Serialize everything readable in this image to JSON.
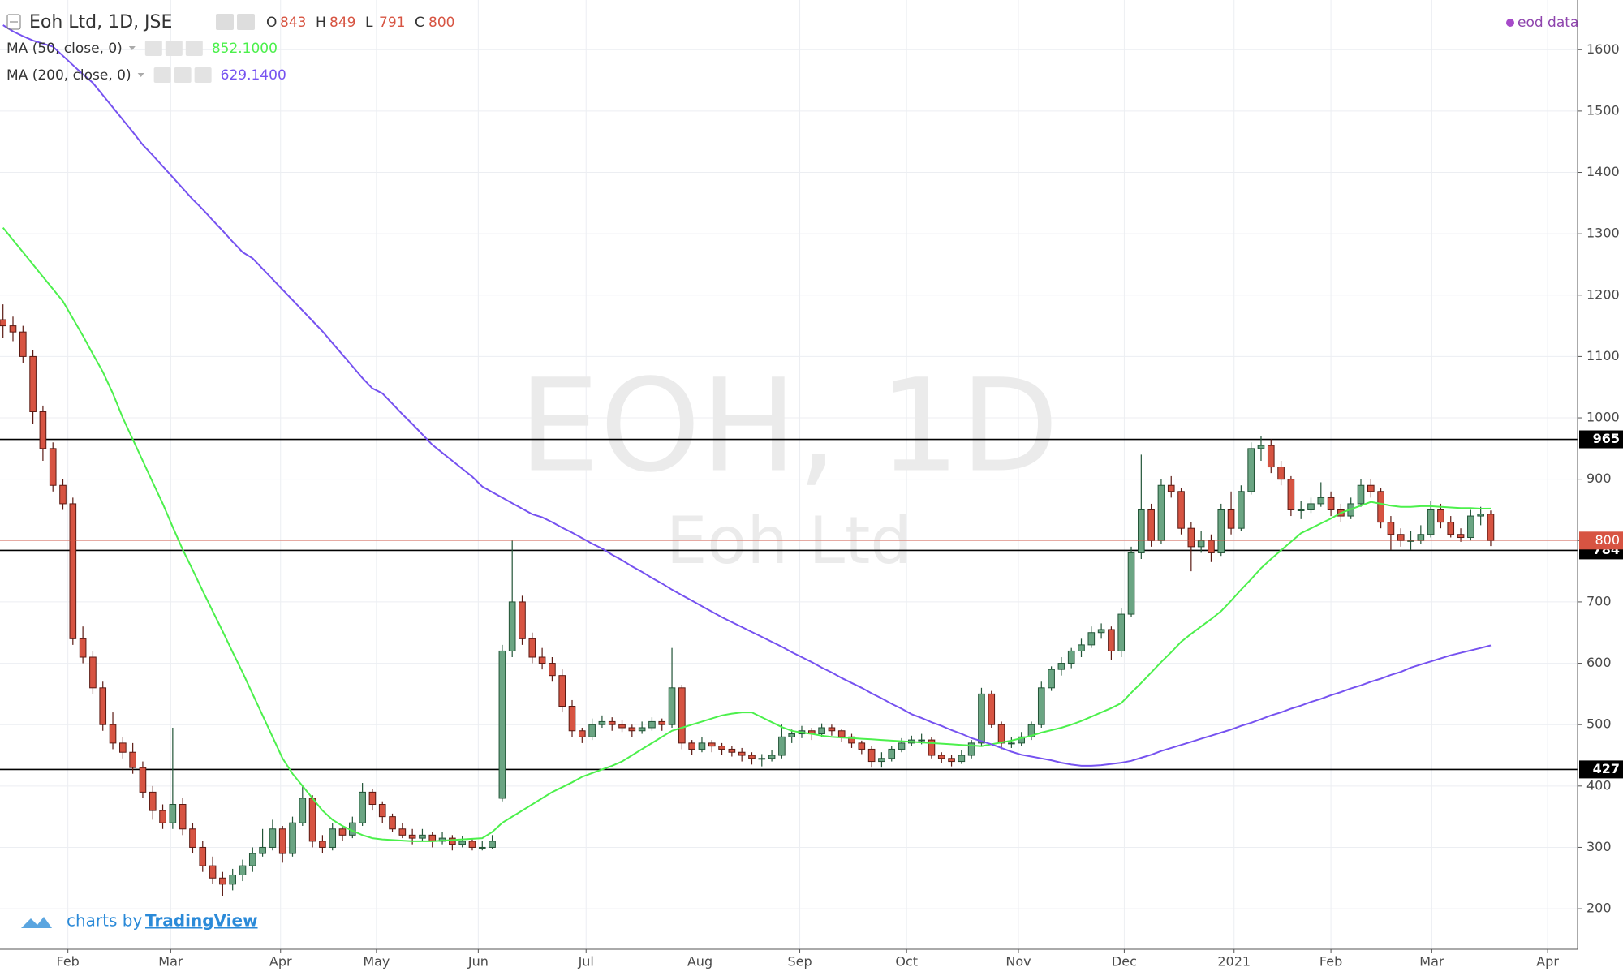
{
  "chart_data": {
    "type": "candlestick",
    "title": "Eoh Ltd, 1D, JSE",
    "watermark": "EOH, 1D",
    "watermark_sub": "Eoh Ltd",
    "source": "eod data",
    "credit": [
      "charts by",
      "TradingView"
    ],
    "ohlc_labels": [
      "O",
      "H",
      "L",
      "C"
    ],
    "up_color": "#6ba583",
    "down_color": "#d75442",
    "up_border": "#225437",
    "down_border": "#5b1a13",
    "candles": [
      [
        1160,
        1185,
        1130,
        1150
      ],
      [
        1150,
        1165,
        1125,
        1140
      ],
      [
        1140,
        1150,
        1090,
        1100
      ],
      [
        1100,
        1110,
        990,
        1010
      ],
      [
        1010,
        1020,
        930,
        950
      ],
      [
        950,
        960,
        880,
        890
      ],
      [
        890,
        900,
        850,
        860
      ],
      [
        860,
        870,
        630,
        640
      ],
      [
        640,
        660,
        600,
        610
      ],
      [
        610,
        620,
        550,
        560
      ],
      [
        560,
        570,
        490,
        500
      ],
      [
        500,
        520,
        460,
        470
      ],
      [
        470,
        480,
        445,
        455
      ],
      [
        455,
        470,
        420,
        430
      ],
      [
        430,
        440,
        380,
        390
      ],
      [
        390,
        400,
        345,
        360
      ],
      [
        360,
        370,
        330,
        340
      ],
      [
        340,
        495,
        330,
        370
      ],
      [
        370,
        380,
        320,
        330
      ],
      [
        330,
        340,
        290,
        300
      ],
      [
        300,
        310,
        260,
        270
      ],
      [
        270,
        285,
        240,
        250
      ],
      [
        250,
        260,
        220,
        240
      ],
      [
        240,
        265,
        230,
        255
      ],
      [
        255,
        280,
        245,
        270
      ],
      [
        270,
        300,
        260,
        290
      ],
      [
        290,
        330,
        285,
        300
      ],
      [
        300,
        345,
        295,
        330
      ],
      [
        330,
        335,
        275,
        290
      ],
      [
        290,
        350,
        285,
        340
      ],
      [
        340,
        400,
        335,
        380
      ],
      [
        380,
        385,
        300,
        310
      ],
      [
        310,
        320,
        290,
        300
      ],
      [
        300,
        340,
        295,
        330
      ],
      [
        330,
        335,
        310,
        320
      ],
      [
        320,
        350,
        315,
        340
      ],
      [
        340,
        405,
        335,
        390
      ],
      [
        390,
        395,
        360,
        370
      ],
      [
        370,
        375,
        340,
        350
      ],
      [
        350,
        355,
        325,
        330
      ],
      [
        330,
        340,
        315,
        320
      ],
      [
        320,
        330,
        305,
        315
      ],
      [
        315,
        330,
        310,
        320
      ],
      [
        320,
        325,
        300,
        310
      ],
      [
        310,
        325,
        305,
        315
      ],
      [
        315,
        320,
        295,
        305
      ],
      [
        305,
        318,
        300,
        310
      ],
      [
        310,
        315,
        295,
        300
      ],
      [
        300,
        310,
        295,
        300
      ],
      [
        300,
        320,
        298,
        310
      ],
      [
        380,
        630,
        375,
        620
      ],
      [
        620,
        800,
        610,
        700
      ],
      [
        700,
        710,
        630,
        640
      ],
      [
        640,
        650,
        600,
        610
      ],
      [
        610,
        625,
        590,
        600
      ],
      [
        600,
        610,
        570,
        580
      ],
      [
        580,
        590,
        520,
        530
      ],
      [
        530,
        540,
        480,
        490
      ],
      [
        490,
        495,
        470,
        480
      ],
      [
        480,
        510,
        475,
        500
      ],
      [
        500,
        515,
        495,
        505
      ],
      [
        505,
        512,
        490,
        500
      ],
      [
        500,
        508,
        488,
        495
      ],
      [
        495,
        500,
        480,
        490
      ],
      [
        490,
        505,
        485,
        495
      ],
      [
        495,
        512,
        490,
        505
      ],
      [
        505,
        510,
        490,
        500
      ],
      [
        500,
        625,
        495,
        560
      ],
      [
        560,
        565,
        460,
        470
      ],
      [
        470,
        475,
        450,
        460
      ],
      [
        460,
        480,
        455,
        470
      ],
      [
        470,
        475,
        455,
        465
      ],
      [
        465,
        470,
        450,
        460
      ],
      [
        460,
        465,
        448,
        455
      ],
      [
        455,
        462,
        440,
        450
      ],
      [
        450,
        455,
        435,
        445
      ],
      [
        445,
        452,
        432,
        445
      ],
      [
        445,
        458,
        440,
        450
      ],
      [
        450,
        500,
        445,
        480
      ],
      [
        480,
        492,
        470,
        485
      ],
      [
        485,
        498,
        478,
        490
      ],
      [
        490,
        495,
        475,
        485
      ],
      [
        485,
        502,
        480,
        495
      ],
      [
        495,
        500,
        482,
        490
      ],
      [
        490,
        493,
        472,
        480
      ],
      [
        480,
        485,
        462,
        470
      ],
      [
        470,
        474,
        452,
        460
      ],
      [
        460,
        465,
        430,
        440
      ],
      [
        440,
        455,
        430,
        445
      ],
      [
        445,
        465,
        440,
        460
      ],
      [
        460,
        478,
        455,
        470
      ],
      [
        470,
        482,
        465,
        475
      ],
      [
        475,
        485,
        468,
        475
      ],
      [
        475,
        480,
        445,
        450
      ],
      [
        450,
        455,
        438,
        445
      ],
      [
        445,
        450,
        432,
        440
      ],
      [
        440,
        458,
        436,
        450
      ],
      [
        450,
        475,
        445,
        470
      ],
      [
        470,
        560,
        465,
        550
      ],
      [
        550,
        555,
        495,
        500
      ],
      [
        500,
        505,
        460,
        470
      ],
      [
        470,
        480,
        462,
        470
      ],
      [
        470,
        488,
        465,
        480
      ],
      [
        480,
        505,
        475,
        500
      ],
      [
        500,
        570,
        495,
        560
      ],
      [
        560,
        595,
        555,
        590
      ],
      [
        590,
        610,
        580,
        600
      ],
      [
        600,
        625,
        592,
        620
      ],
      [
        620,
        640,
        610,
        630
      ],
      [
        630,
        660,
        625,
        650
      ],
      [
        650,
        665,
        640,
        655
      ],
      [
        655,
        660,
        605,
        620
      ],
      [
        620,
        690,
        610,
        680
      ],
      [
        680,
        790,
        675,
        780
      ],
      [
        780,
        940,
        770,
        850
      ],
      [
        850,
        860,
        790,
        800
      ],
      [
        800,
        900,
        795,
        890
      ],
      [
        890,
        905,
        870,
        880
      ],
      [
        880,
        885,
        810,
        820
      ],
      [
        820,
        830,
        750,
        790
      ],
      [
        790,
        815,
        780,
        800
      ],
      [
        800,
        810,
        765,
        780
      ],
      [
        780,
        860,
        775,
        850
      ],
      [
        850,
        880,
        810,
        820
      ],
      [
        820,
        890,
        815,
        880
      ],
      [
        880,
        960,
        875,
        950
      ],
      [
        950,
        970,
        930,
        955
      ],
      [
        955,
        965,
        910,
        920
      ],
      [
        920,
        930,
        890,
        900
      ],
      [
        900,
        905,
        840,
        850
      ],
      [
        850,
        865,
        835,
        850
      ],
      [
        850,
        870,
        845,
        860
      ],
      [
        860,
        895,
        855,
        870
      ],
      [
        870,
        880,
        840,
        850
      ],
      [
        850,
        860,
        830,
        840
      ],
      [
        840,
        870,
        835,
        860
      ],
      [
        860,
        900,
        855,
        890
      ],
      [
        890,
        900,
        870,
        880
      ],
      [
        880,
        885,
        820,
        830
      ],
      [
        830,
        840,
        785,
        810
      ],
      [
        810,
        820,
        790,
        800
      ],
      [
        800,
        815,
        785,
        800
      ],
      [
        800,
        825,
        795,
        810
      ],
      [
        810,
        865,
        805,
        850
      ],
      [
        850,
        860,
        820,
        830
      ],
      [
        830,
        840,
        805,
        810
      ],
      [
        810,
        820,
        798,
        805
      ],
      [
        805,
        850,
        800,
        840
      ],
      [
        840,
        855,
        825,
        843
      ],
      [
        843,
        849,
        791,
        800
      ]
    ],
    "series": [
      {
        "name": "MA (50, close, 0)",
        "color": "#4cf04c",
        "last_value_label": "852.1000",
        "values": [
          1310,
          1290,
          1270,
          1250,
          1230,
          1210,
          1190,
          1162,
          1134,
          1104,
          1075,
          1040,
          1000,
          965,
          930,
          895,
          860,
          822,
          785,
          752,
          718,
          685,
          652,
          618,
          585,
          550,
          515,
          480,
          445,
          420,
          400,
          380,
          360,
          345,
          335,
          327,
          320,
          315,
          313,
          312,
          311,
          310,
          310,
          310,
          311,
          312,
          313,
          314,
          315,
          325,
          340,
          350,
          360,
          370,
          380,
          390,
          398,
          406,
          415,
          421,
          427,
          433,
          440,
          450,
          460,
          470,
          480,
          490,
          495,
          500,
          505,
          510,
          515,
          518,
          520,
          520,
          512,
          504,
          496,
          490,
          487,
          485,
          482,
          480,
          479,
          478,
          477,
          476,
          475,
          474,
          473,
          472,
          471,
          470,
          469,
          468,
          467,
          466,
          465,
          468,
          471,
          474,
          478,
          482,
          487,
          491,
          495,
          500,
          506,
          513,
          520,
          527,
          535,
          552,
          568,
          585,
          602,
          618,
          635,
          648,
          660,
          672,
          685,
          702,
          720,
          737,
          755,
          770,
          784,
          798,
          812,
          820,
          828,
          836,
          845,
          851,
          857,
          863,
          860,
          857,
          855,
          855,
          856,
          856,
          855,
          854,
          853,
          853,
          852,
          852.1
        ]
      },
      {
        "name": "MA (200, close, 0)",
        "color": "#7652f0",
        "last_value_label": "629.1400",
        "values": [
          1640,
          1630,
          1622,
          1615,
          1610,
          1605,
          1590,
          1575,
          1560,
          1546,
          1526,
          1506,
          1486,
          1466,
          1445,
          1428,
          1410,
          1392,
          1374,
          1356,
          1340,
          1322,
          1305,
          1287,
          1270,
          1260,
          1243,
          1226,
          1209,
          1192,
          1175,
          1158,
          1141,
          1122,
          1103,
          1084,
          1065,
          1048,
          1040,
          1023,
          1006,
          990,
          973,
          956,
          943,
          930,
          917,
          904,
          888,
          879,
          870,
          861,
          852,
          843,
          838,
          830,
          821,
          813,
          804,
          795,
          787,
          777,
          768,
          758,
          749,
          739,
          730,
          720,
          711,
          702,
          693,
          684,
          675,
          667,
          659,
          651,
          643,
          635,
          627,
          618,
          610,
          602,
          593,
          585,
          576,
          568,
          560,
          551,
          543,
          534,
          526,
          517,
          511,
          504,
          498,
          491,
          485,
          478,
          473,
          468,
          462,
          456,
          451,
          448,
          445,
          442,
          438,
          435,
          433,
          433,
          434,
          436,
          438,
          441,
          446,
          451,
          457,
          462,
          467,
          472,
          477,
          482,
          487,
          492,
          498,
          503,
          509,
          515,
          520,
          526,
          531,
          537,
          542,
          548,
          553,
          559,
          564,
          570,
          575,
          581,
          586,
          593,
          598,
          603,
          608,
          613,
          617,
          621,
          625,
          629.14
        ]
      }
    ],
    "hlines": [
      965,
      784,
      427
    ],
    "hline_color": "#000000",
    "ylim": [
      134,
      1681
    ],
    "yticks": [
      200,
      300,
      400,
      500,
      600,
      700,
      800,
      900,
      1000,
      1100,
      1200,
      1300,
      1400,
      1500,
      1600
    ],
    "xlim": [
      -0.3,
      157.7
    ],
    "xticks": [
      {
        "value": 6.5,
        "label": "Feb"
      },
      {
        "value": 16.8,
        "label": "Mar"
      },
      {
        "value": 27.8,
        "label": "Apr"
      },
      {
        "value": 37.4,
        "label": "May"
      },
      {
        "value": 47.6,
        "label": "Jun"
      },
      {
        "value": 58.4,
        "label": "Jul"
      },
      {
        "value": 69.8,
        "label": "Aug"
      },
      {
        "value": 79.8,
        "label": "Sep"
      },
      {
        "value": 90.5,
        "label": "Oct"
      },
      {
        "value": 101.7,
        "label": "Nov"
      },
      {
        "value": 112.3,
        "label": "Dec"
      },
      {
        "value": 123.3,
        "label": "2021"
      },
      {
        "value": 133,
        "label": "Feb"
      },
      {
        "value": 143.1,
        "label": "Mar"
      },
      {
        "value": 154.7,
        "label": "Apr"
      }
    ],
    "grid": true
  }
}
